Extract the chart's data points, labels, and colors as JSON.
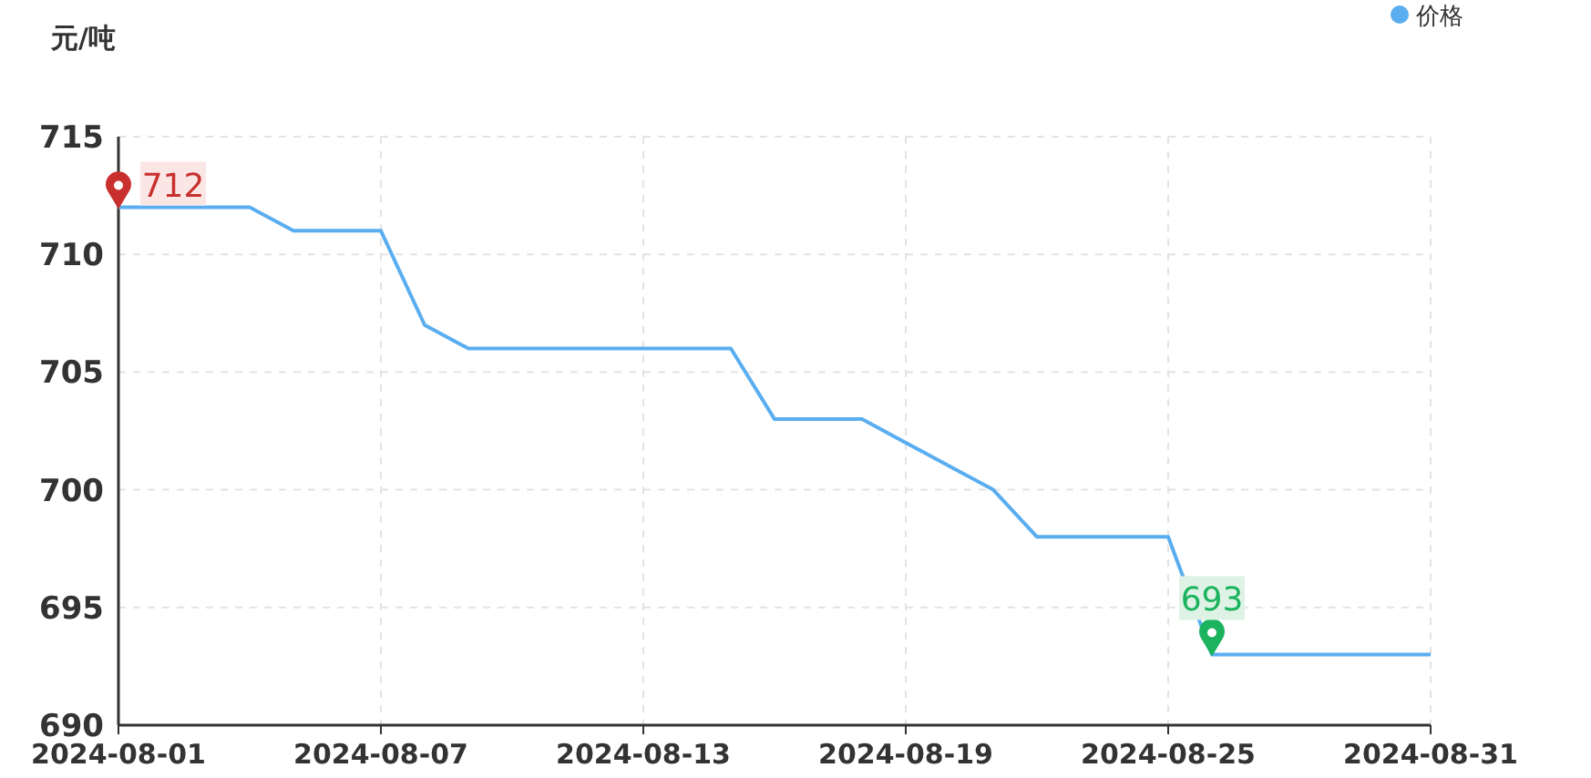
{
  "chart_data": {
    "type": "line",
    "ylabel": "元/吨",
    "x": [
      "2024-08-01",
      "2024-08-02",
      "2024-08-03",
      "2024-08-04",
      "2024-08-05",
      "2024-08-06",
      "2024-08-07",
      "2024-08-08",
      "2024-08-09",
      "2024-08-10",
      "2024-08-11",
      "2024-08-12",
      "2024-08-13",
      "2024-08-14",
      "2024-08-15",
      "2024-08-16",
      "2024-08-17",
      "2024-08-18",
      "2024-08-19",
      "2024-08-20",
      "2024-08-21",
      "2024-08-22",
      "2024-08-23",
      "2024-08-24",
      "2024-08-25",
      "2024-08-26",
      "2024-08-27",
      "2024-08-28",
      "2024-08-29",
      "2024-08-30",
      "2024-08-31"
    ],
    "series": [
      {
        "name": "价格",
        "color": "#5aaef0",
        "values": [
          712,
          712,
          712,
          712,
          711,
          711,
          711,
          707,
          706,
          706,
          706,
          706,
          706,
          706,
          706,
          703,
          703,
          703,
          702,
          701,
          700,
          698,
          698,
          698,
          698,
          693,
          693,
          693,
          693,
          693,
          693
        ]
      }
    ],
    "xlim": [
      "2024-08-01",
      "2024-08-31"
    ],
    "xticks": [
      "2024-08-01",
      "2024-08-07",
      "2024-08-13",
      "2024-08-19",
      "2024-08-25",
      "2024-08-31"
    ],
    "ylim": [
      690,
      715
    ],
    "yticks": [
      690,
      695,
      700,
      705,
      710,
      715
    ],
    "annotations": [
      {
        "text": "712",
        "x": "2024-08-01",
        "y": 712
      },
      {
        "text": "693",
        "x": "2024-08-26",
        "y": 693
      }
    ],
    "grid": true,
    "legend": "top right",
    "marker": "none",
    "line_style": "solid"
  }
}
